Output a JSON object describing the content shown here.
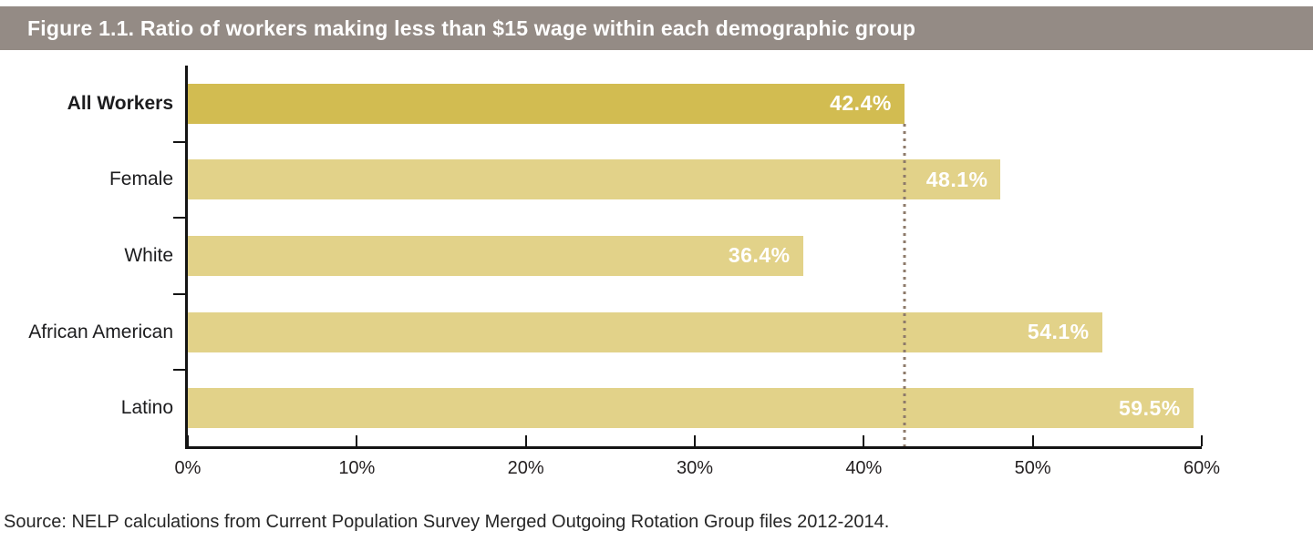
{
  "figure": {
    "title": "Figure 1.1. Ratio of workers making less than $15 wage within each demographic group",
    "source": "Source: NELP calculations from Current Population Survey Merged Outgoing Rotation Group files 2012-2014.",
    "title_bar_color": "#948b85"
  },
  "chart_data": {
    "type": "bar",
    "orientation": "horizontal",
    "title": "Figure 1.1. Ratio of workers making less than $15 wage within each demographic group",
    "categories": [
      "All Workers",
      "Female",
      "White",
      "African American",
      "Latino"
    ],
    "values": [
      42.4,
      48.1,
      36.4,
      54.1,
      59.5
    ],
    "value_labels": [
      "42.4%",
      "48.1%",
      "36.4%",
      "54.1%",
      "59.5%"
    ],
    "xlim": [
      0,
      60
    ],
    "x_ticks": [
      "0%",
      "10%",
      "20%",
      "30%",
      "40%",
      "50%",
      "60%"
    ],
    "x_tick_values": [
      0,
      10,
      20,
      30,
      40,
      50,
      60
    ],
    "bar_colors": [
      "#d2bc51",
      "#e2d289",
      "#e2d289",
      "#e2d289",
      "#e2d289"
    ],
    "highlight_category": "All Workers",
    "reference_line": {
      "value": 42.4,
      "style": "dotted",
      "color": "#8d7a6a"
    },
    "grid": false,
    "legend": false,
    "value_label_position": "inside-end",
    "axis_color": "#141414"
  }
}
